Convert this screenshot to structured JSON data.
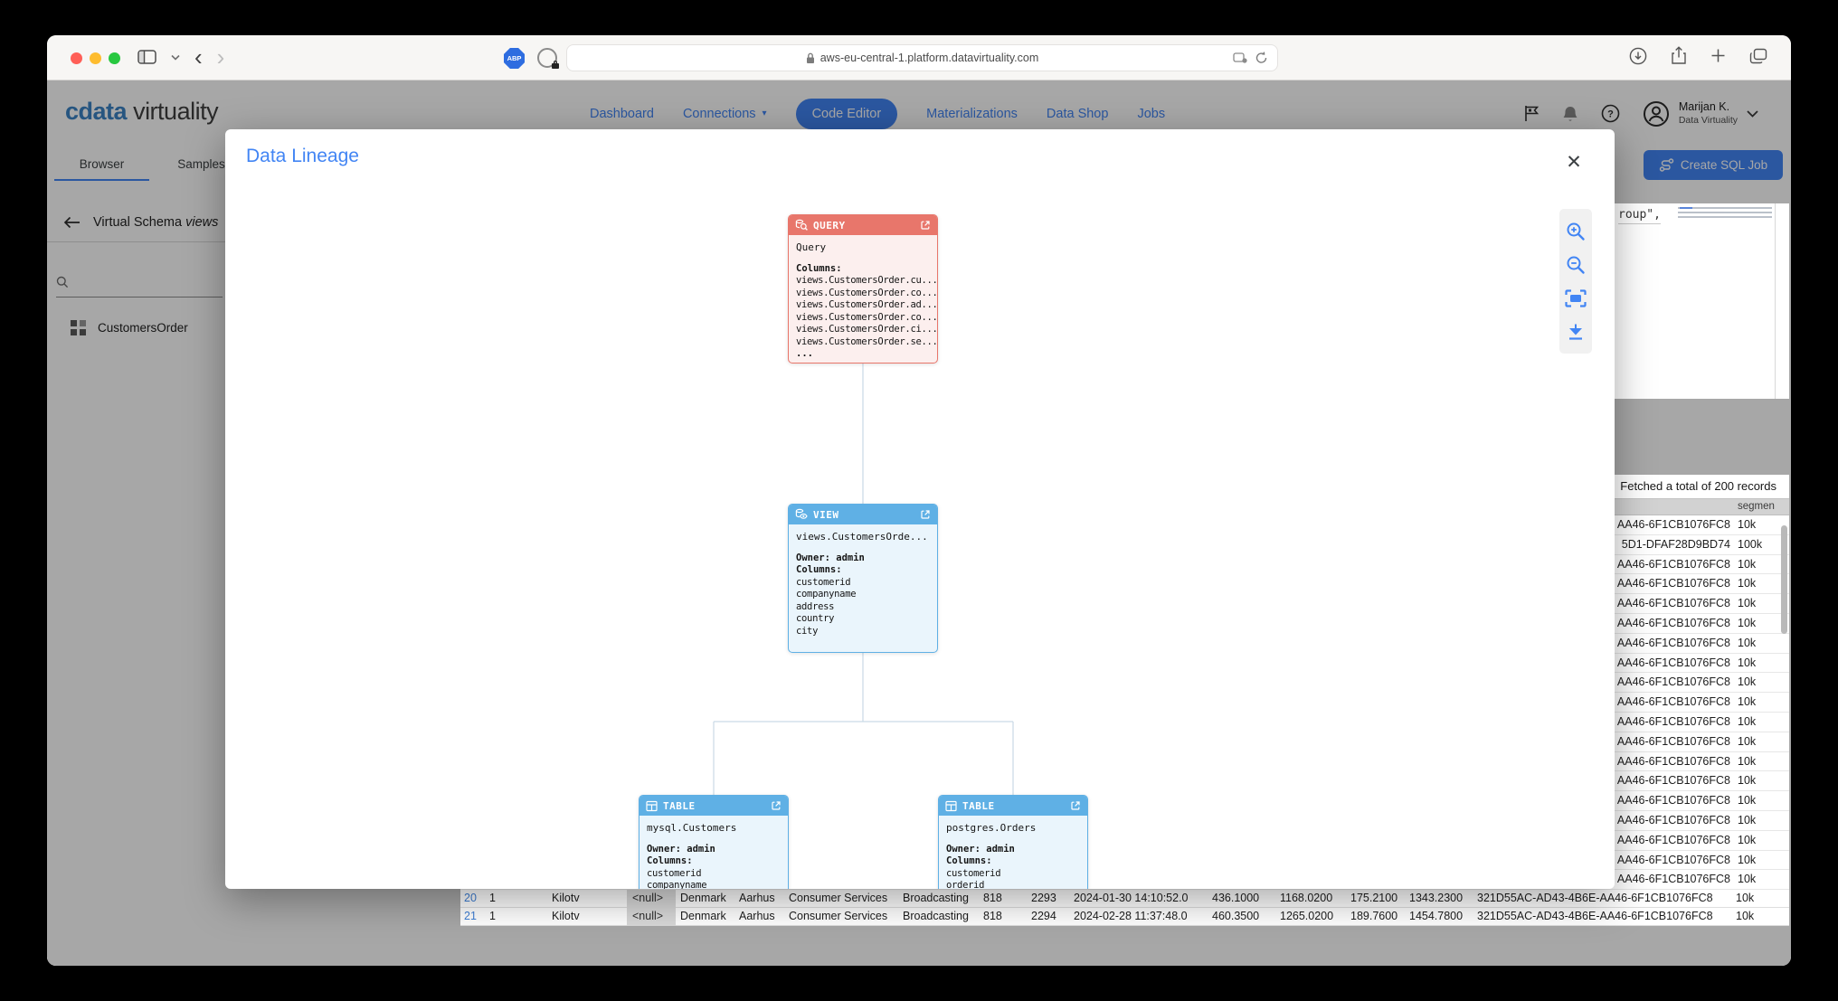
{
  "colors": {
    "accent_blue": "#4285f4",
    "query_header_red": "#e8766b",
    "query_body_pink": "#fcefee",
    "node_header_blue": "#5fb0e5",
    "node_body_blue": "#eaf5fc",
    "traffic_red": "#ff5f57",
    "traffic_yellow": "#febc2e",
    "traffic_green": "#28c840"
  },
  "browser_chrome": {
    "url": "aws-eu-central-1.platform.datavirtuality.com",
    "abp_badge": "ABP"
  },
  "app_header": {
    "logo_primary": "cdata",
    "logo_secondary": "virtuality",
    "nav_items": [
      {
        "label": "Dashboard"
      },
      {
        "label": "Connections",
        "has_dropdown": true
      },
      {
        "label": "Code Editor",
        "active": true
      },
      {
        "label": "Materializations"
      },
      {
        "label": "Data Shop"
      },
      {
        "label": "Jobs"
      }
    ],
    "user_name": "Marijan K.",
    "user_org": "Data Virtuality"
  },
  "tabs": [
    {
      "label": "Browser",
      "active": true
    },
    {
      "label": "Samples",
      "active": false
    }
  ],
  "sidebar": {
    "schema_label": "Virtual Schema",
    "schema_name": "views",
    "tree_items": [
      {
        "label": "CustomersOrder"
      }
    ]
  },
  "actions": {
    "create_sql_job": "Create SQL Job"
  },
  "editor": {
    "visible_code": "roup\","
  },
  "results": {
    "status_text": "Fetched a total of 200 records",
    "segment_header": "segmen",
    "side_rows": [
      {
        "guid": "AA46-6F1CB1076FC8",
        "segment": "10k"
      },
      {
        "guid": "5D1-DFAF28D9BD74",
        "segment": "100k"
      },
      {
        "guid": "AA46-6F1CB1076FC8",
        "segment": "10k"
      },
      {
        "guid": "AA46-6F1CB1076FC8",
        "segment": "10k"
      },
      {
        "guid": "AA46-6F1CB1076FC8",
        "segment": "10k"
      },
      {
        "guid": "AA46-6F1CB1076FC8",
        "segment": "10k"
      },
      {
        "guid": "AA46-6F1CB1076FC8",
        "segment": "10k"
      },
      {
        "guid": "AA46-6F1CB1076FC8",
        "segment": "10k"
      },
      {
        "guid": "AA46-6F1CB1076FC8",
        "segment": "10k"
      },
      {
        "guid": "AA46-6F1CB1076FC8",
        "segment": "10k"
      },
      {
        "guid": "AA46-6F1CB1076FC8",
        "segment": "10k"
      },
      {
        "guid": "AA46-6F1CB1076FC8",
        "segment": "10k"
      },
      {
        "guid": "AA46-6F1CB1076FC8",
        "segment": "10k"
      },
      {
        "guid": "AA46-6F1CB1076FC8",
        "segment": "10k"
      },
      {
        "guid": "AA46-6F1CB1076FC8",
        "segment": "10k"
      },
      {
        "guid": "AA46-6F1CB1076FC8",
        "segment": "10k"
      },
      {
        "guid": "AA46-6F1CB1076FC8",
        "segment": "10k"
      },
      {
        "guid": "AA46-6F1CB1076FC8",
        "segment": "10k"
      },
      {
        "guid": "AA46-6F1CB1076FC8",
        "segment": "10k"
      }
    ],
    "bottom_rows": [
      {
        "cells": [
          "20",
          "1",
          "Kilotv",
          "<null>",
          "Denmark",
          "Aarhus",
          "Consumer Services",
          "Broadcasting",
          "818",
          "2293",
          "2024-01-30 14:10:52.0",
          "436.1000",
          "1168.0200",
          "175.2100",
          "1343.2300",
          "321D55AC-AD43-4B6E-AA46-6F1CB1076FC8",
          "10k"
        ]
      },
      {
        "cells": [
          "21",
          "1",
          "Kilotv",
          "<null>",
          "Denmark",
          "Aarhus",
          "Consumer Services",
          "Broadcasting",
          "818",
          "2294",
          "2024-02-28 11:37:48.0",
          "460.3500",
          "1265.0200",
          "189.7600",
          "1454.7800",
          "321D55AC-AD43-4B6E-AA46-6F1CB1076FC8",
          "10k"
        ]
      }
    ]
  },
  "modal": {
    "title": "Data Lineage",
    "nodes": {
      "query": {
        "badge": "QUERY",
        "title": "Query",
        "columns_label": "Columns:",
        "columns": [
          "views.CustomersOrder.cu...",
          "views.CustomersOrder.co...",
          "views.CustomersOrder.ad...",
          "views.CustomersOrder.co...",
          "views.CustomersOrder.ci...",
          "views.CustomersOrder.se..."
        ],
        "more": "..."
      },
      "view": {
        "badge": "VIEW",
        "title": "views.CustomersOrde...",
        "owner_label": "Owner:",
        "owner": "admin",
        "columns_label": "Columns:",
        "columns": [
          "customerid",
          "companyname",
          "address",
          "country",
          "city"
        ]
      },
      "table_left": {
        "badge": "TABLE",
        "title": "mysql.Customers",
        "owner_label": "Owner:",
        "owner": "admin",
        "columns_label": "Columns:",
        "columns": [
          "customerid",
          "companyname"
        ]
      },
      "table_right": {
        "badge": "TABLE",
        "title": "postgres.Orders",
        "owner_label": "Owner:",
        "owner": "admin",
        "columns_label": "Columns:",
        "columns": [
          "customerid",
          "orderid"
        ]
      }
    }
  }
}
